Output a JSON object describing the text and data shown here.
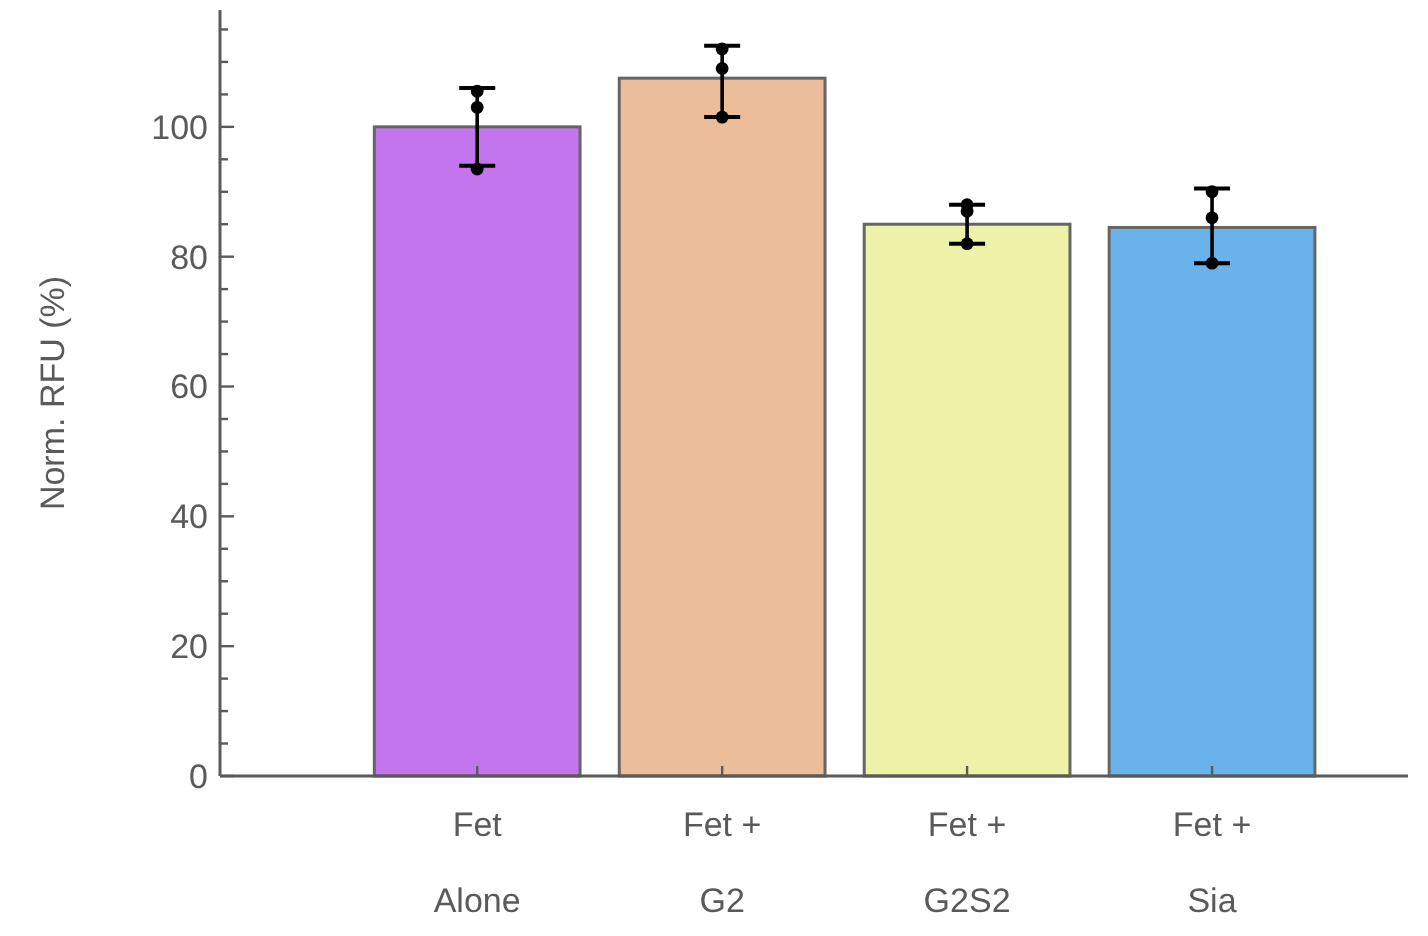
{
  "chart_data": {
    "type": "bar",
    "ylabel": "Norm. RFU (%)",
    "categories": [
      "Fet\nAlone",
      "Fet +\nG2",
      "Fet +\nG2S2",
      "Fet +\nSia"
    ],
    "series": [
      {
        "values": [
          100,
          107.5,
          85,
          84.5
        ],
        "colors": [
          "#c275ec",
          "#ebbd9b",
          "#eef2a8",
          "#6ab2ea"
        ],
        "errors": [
          [
            94,
            106
          ],
          [
            101.5,
            112.5
          ],
          [
            82,
            88
          ],
          [
            79,
            90.5
          ]
        ]
      },
      {
        "type": "scatter",
        "color": "#000000",
        "x": [
          "Fet\nAlone",
          "Fet\nAlone",
          "Fet\nAlone",
          "Fet +\nG2",
          "Fet +\nG2",
          "Fet +\nG2",
          "Fet +\nG2S2",
          "Fet +\nG2S2",
          "Fet +\nG2S2",
          "Fet +\nSia",
          "Fet +\nSia",
          "Fet +\nSia"
        ],
        "values": [
          93.5,
          103,
          105.5,
          101.5,
          109,
          112,
          82,
          87,
          88,
          79,
          86,
          90
        ]
      }
    ],
    "ylim": [
      0,
      118
    ],
    "yticks": [
      0,
      {
        "value": 5,
        "label": null
      },
      {
        "value": 10,
        "label": null
      },
      {
        "value": 15,
        "label": null
      },
      20,
      {
        "value": 25,
        "label": null
      },
      {
        "value": 30,
        "label": null
      },
      {
        "value": 35,
        "label": null
      },
      40,
      {
        "value": 45,
        "label": null
      },
      {
        "value": 50,
        "label": null
      },
      {
        "value": 55,
        "label": null
      },
      60,
      {
        "value": 65,
        "label": null
      },
      {
        "value": 70,
        "label": null
      },
      {
        "value": 75,
        "label": null
      },
      80,
      {
        "value": 85,
        "label": null
      },
      {
        "value": 90,
        "label": null
      },
      {
        "value": 95,
        "label": null
      },
      100,
      {
        "value": 105,
        "label": null
      },
      {
        "value": 110,
        "label": null
      },
      {
        "value": 115,
        "label": null
      }
    ],
    "grid": false,
    "marker": "circle"
  }
}
